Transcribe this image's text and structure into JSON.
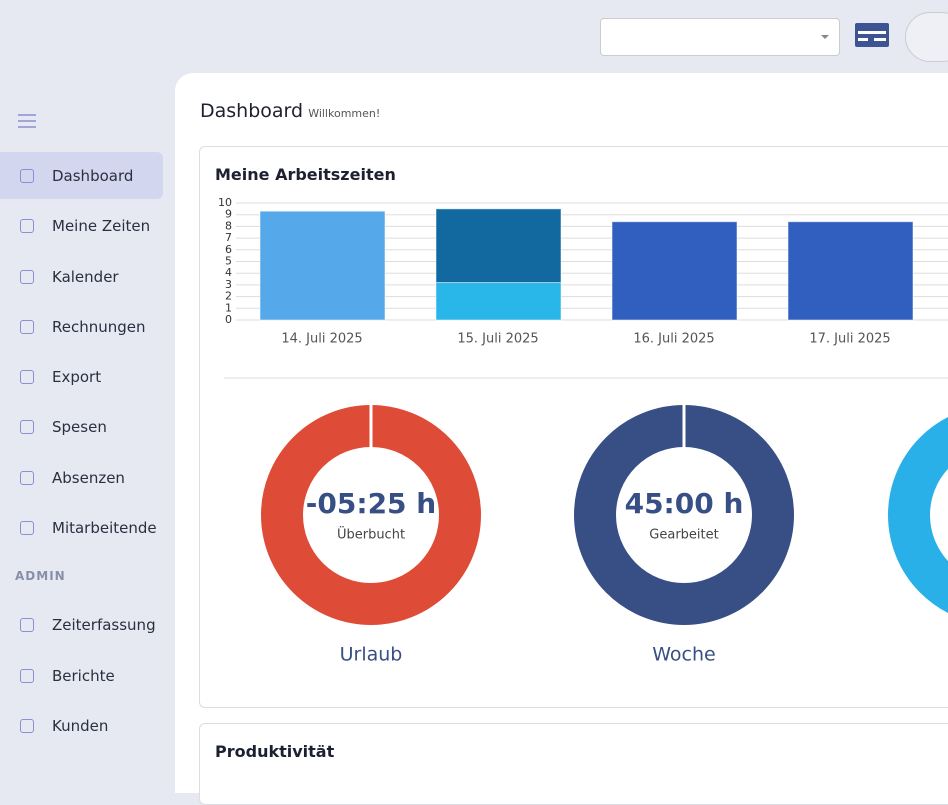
{
  "top_bar": {},
  "sidebar": {
    "items": [
      "Dashboard",
      "Meine Zeiten",
      "Kalender",
      "Rechnungen",
      "Export",
      "Spesen",
      "Absenzen",
      "Mitarbeitende"
    ],
    "section": "ADMIN",
    "admin_items": [
      "Zeiterfassung",
      "Berichte",
      "Kunden"
    ]
  },
  "header": {
    "title": "Dashboard",
    "subtitle": "Willkommen!"
  },
  "card": {
    "title": "Meine Arbeitszeiten"
  },
  "chart_data": {
    "type": "bar",
    "stacked": true,
    "categories": [
      "14. Juli 2025",
      "15. Juli 2025",
      "16. Juli 2025",
      "17. Juli 2025"
    ],
    "series": [
      {
        "color": "#55a9ea",
        "values": [
          9.3,
          null,
          null,
          null
        ]
      },
      {
        "color": "#29b6e8",
        "values": [
          null,
          3.2,
          null,
          null
        ]
      },
      {
        "color": "#11699f",
        "values": [
          null,
          6.3,
          null,
          null
        ]
      },
      {
        "color": "#315fbf",
        "values": [
          null,
          null,
          8.4,
          8.4
        ]
      }
    ],
    "ylim": [
      0,
      10
    ],
    "yticks": [
      0,
      1,
      2,
      3,
      4,
      5,
      6,
      7,
      8,
      9,
      10
    ],
    "grid": true
  },
  "donuts": [
    {
      "value_label": "-05:25 h",
      "caption": "Überbucht",
      "title": "Urlaub",
      "color": "#de4c37"
    },
    {
      "value_label": "45:00 h",
      "caption": "Gearbeitet",
      "title": "Woche",
      "color": "#374f84"
    }
  ],
  "card2": {
    "title": "Produktivität"
  }
}
